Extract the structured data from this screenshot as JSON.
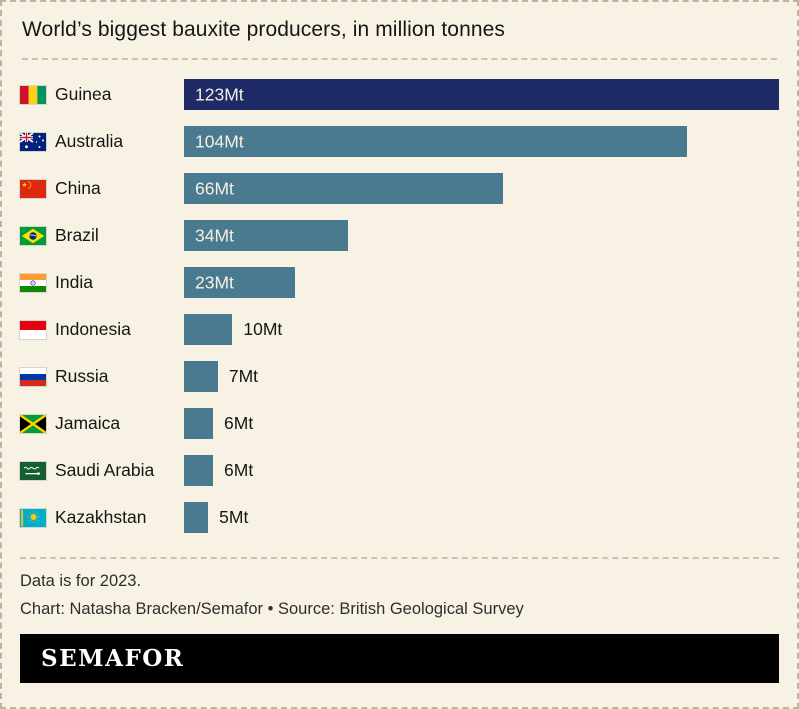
{
  "title": "World’s biggest bauxite producers, in million tonnes",
  "colors": {
    "background": "#f8f2e5",
    "bar_default": "#4a7a8f",
    "bar_highlight": "#1f2b67",
    "value_inside_text": "#f5efe2",
    "text_dark": "#161616"
  },
  "chart_data": {
    "type": "bar",
    "orientation": "horizontal",
    "title": "World’s biggest bauxite producers, in million tonnes",
    "unit": "Mt",
    "xlim": [
      0,
      123
    ],
    "grid": false,
    "legend": false,
    "categories": [
      "Guinea",
      "Australia",
      "China",
      "Brazil",
      "India",
      "Indonesia",
      "Russia",
      "Jamaica",
      "Saudi Arabia",
      "Kazakhstan"
    ],
    "values": [
      123,
      104,
      66,
      34,
      23,
      10,
      7,
      6,
      6,
      5
    ],
    "rows": [
      {
        "label": "Guinea",
        "value": 123,
        "value_label": "123Mt",
        "flag": "guinea-flag-icon",
        "highlight": true,
        "label_inside": true
      },
      {
        "label": "Australia",
        "value": 104,
        "value_label": "104Mt",
        "flag": "australia-flag-icon",
        "highlight": false,
        "label_inside": true
      },
      {
        "label": "China",
        "value": 66,
        "value_label": "66Mt",
        "flag": "china-flag-icon",
        "highlight": false,
        "label_inside": true
      },
      {
        "label": "Brazil",
        "value": 34,
        "value_label": "34Mt",
        "flag": "brazil-flag-icon",
        "highlight": false,
        "label_inside": true
      },
      {
        "label": "India",
        "value": 23,
        "value_label": "23Mt",
        "flag": "india-flag-icon",
        "highlight": false,
        "label_inside": true
      },
      {
        "label": "Indonesia",
        "value": 10,
        "value_label": "10Mt",
        "flag": "indonesia-flag-icon",
        "highlight": false,
        "label_inside": false
      },
      {
        "label": "Russia",
        "value": 7,
        "value_label": "7Mt",
        "flag": "russia-flag-icon",
        "highlight": false,
        "label_inside": false
      },
      {
        "label": "Jamaica",
        "value": 6,
        "value_label": "6Mt",
        "flag": "jamaica-flag-icon",
        "highlight": false,
        "label_inside": false
      },
      {
        "label": "Saudi Arabia",
        "value": 6,
        "value_label": "6Mt",
        "flag": "saudi-arabia-flag-icon",
        "highlight": false,
        "label_inside": false
      },
      {
        "label": "Kazakhstan",
        "value": 5,
        "value_label": "5Mt",
        "flag": "kazakhstan-flag-icon",
        "highlight": false,
        "label_inside": false
      }
    ]
  },
  "footer": {
    "note": "Data is for 2023.",
    "credit": "Chart: Natasha Bracken/Semafor • Source: British Geological Survey"
  },
  "logo": {
    "text": "SEMAFOR"
  }
}
